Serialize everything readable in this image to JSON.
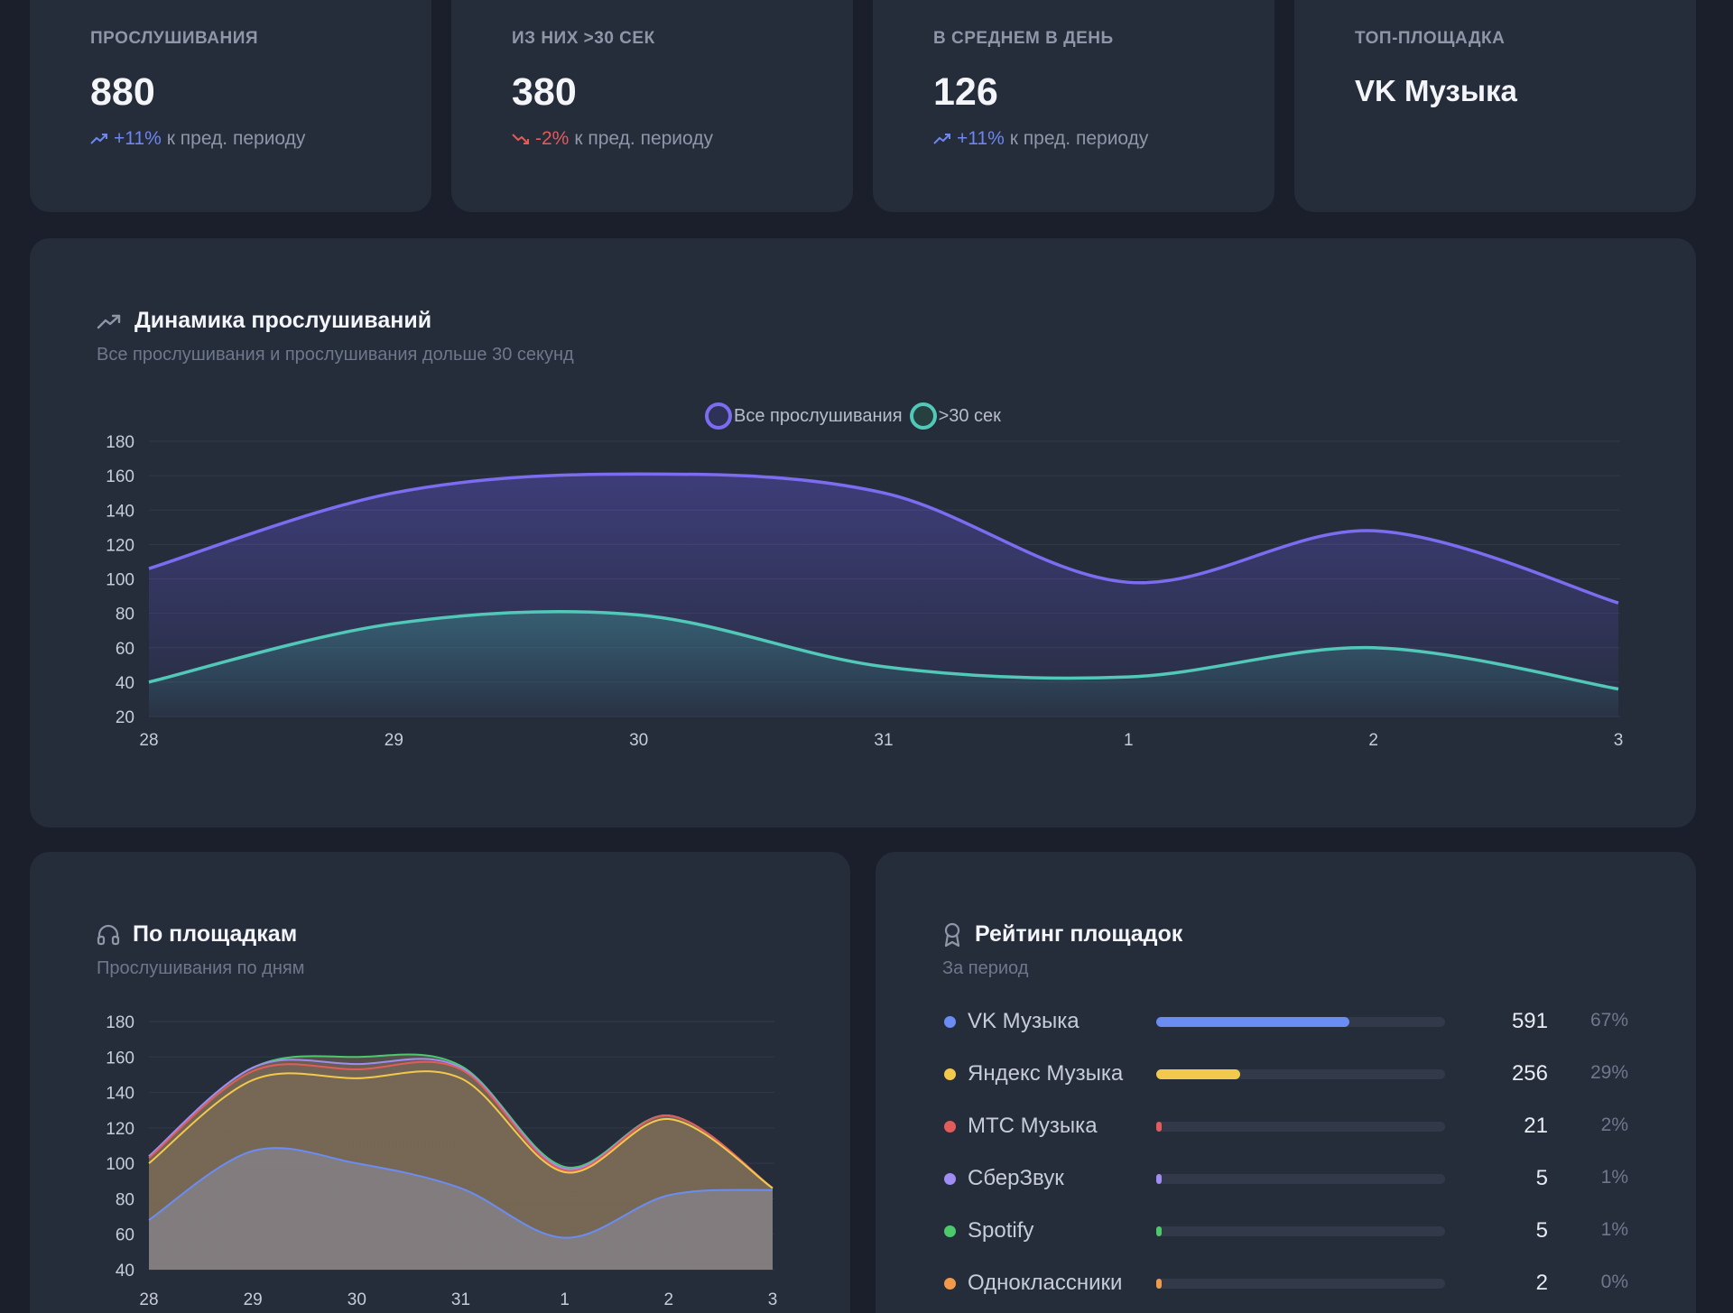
{
  "stats": [
    {
      "label": "ПРОСЛУШИВАНИЯ",
      "value": "880",
      "delta": "+11%",
      "delta_dir": "up",
      "delta_note": "к пред. периоду"
    },
    {
      "label": "ИЗ НИХ >30 СЕК",
      "value": "380",
      "delta": "-2%",
      "delta_dir": "down",
      "delta_note": "к пред. периоду"
    },
    {
      "label": "В СРЕДНЕМ В ДЕНЬ",
      "value": "126",
      "delta": "+11%",
      "delta_dir": "up",
      "delta_note": "к пред. периоду"
    },
    {
      "label": "ТОП-ПЛОЩАДКА",
      "value": "VK Музыка"
    }
  ],
  "dynamics": {
    "title": "Динамика прослушиваний",
    "subtitle": "Все прослушивания и прослушивания дольше 30 секунд"
  },
  "platforms": {
    "title": "По площадкам",
    "subtitle": "Прослушивания по дням"
  },
  "ranking": {
    "title": "Рейтинг площадок",
    "subtitle": "За период",
    "items": [
      {
        "name": "VK Музыка",
        "count": "591",
        "pct": "67%",
        "share": 0.67,
        "color": "#6b8cf2"
      },
      {
        "name": "Яндекс Музыка",
        "count": "256",
        "pct": "29%",
        "share": 0.29,
        "color": "#f2c94c"
      },
      {
        "name": "МТС Музыка",
        "count": "21",
        "pct": "2%",
        "share": 0.02,
        "color": "#e25c5c"
      },
      {
        "name": "СберЗвук",
        "count": "5",
        "pct": "1%",
        "share": 0.01,
        "color": "#a08cf2"
      },
      {
        "name": "Spotify",
        "count": "5",
        "pct": "1%",
        "share": 0.01,
        "color": "#4cc96b"
      },
      {
        "name": "Одноклассники",
        "count": "2",
        "pct": "0%",
        "share": 0.005,
        "color": "#f29a4c"
      }
    ]
  },
  "chart_data": [
    {
      "type": "area",
      "title": "Динамика прослушиваний",
      "categories": [
        "28",
        "29",
        "30",
        "31",
        "1",
        "2",
        "3"
      ],
      "ylim": [
        20,
        180
      ],
      "yticks": [
        20,
        40,
        60,
        80,
        100,
        120,
        140,
        160,
        180
      ],
      "grid": true,
      "legend": "top-center",
      "series": [
        {
          "name": "Все прослушивания",
          "values": [
            106,
            150,
            161,
            150,
            98,
            128,
            86
          ],
          "color": "#7b6cf0"
        },
        {
          "name": ">30 сек",
          "values": [
            40,
            74,
            79,
            49,
            43,
            60,
            36
          ],
          "color": "#52c8b8"
        }
      ]
    },
    {
      "type": "area",
      "title": "По площадкам",
      "stacked": true,
      "categories": [
        "28",
        "29",
        "30",
        "31",
        "1",
        "2",
        "3"
      ],
      "ylim": [
        40,
        180
      ],
      "yticks": [
        40,
        60,
        80,
        100,
        120,
        140,
        160,
        180
      ],
      "grid": true,
      "series": [
        {
          "values": [
            68,
            107,
            100,
            86,
            58,
            82,
            85
          ],
          "color": "#6b8cf2"
        },
        {
          "values": [
            100,
            147,
            148,
            148,
            95,
            125,
            86
          ],
          "color": "#f2c94c"
        },
        {
          "values": [
            103,
            152,
            153,
            153,
            96,
            127,
            86
          ],
          "color": "#e25c5c"
        },
        {
          "values": [
            104,
            154,
            156,
            154,
            97,
            127,
            86
          ],
          "color": "#a08cf2"
        },
        {
          "values": [
            104,
            154,
            160,
            155,
            98,
            127,
            86
          ],
          "color": "#4cc96b"
        }
      ]
    }
  ]
}
